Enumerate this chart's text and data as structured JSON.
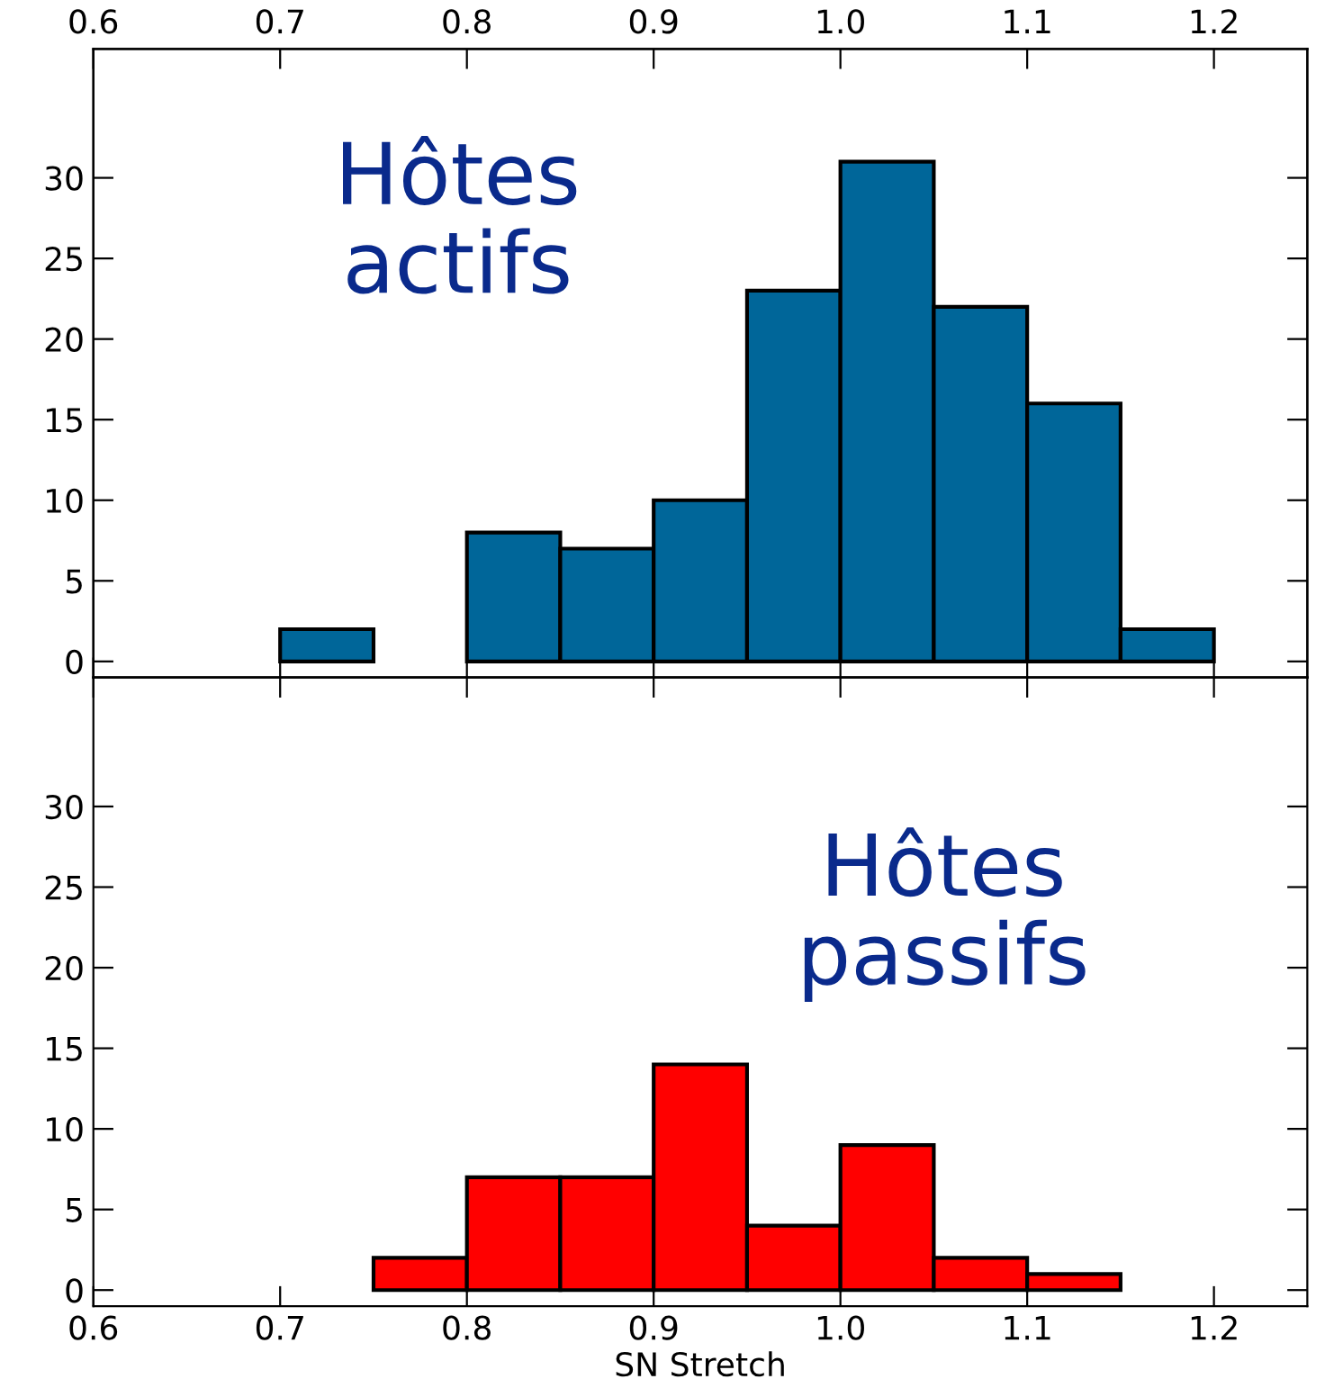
{
  "chart_data": [
    {
      "type": "histogram",
      "bins": [
        0.7,
        0.75,
        0.8,
        0.85,
        0.9,
        0.95,
        1.0,
        1.05,
        1.1,
        1.15,
        1.2
      ],
      "values": [
        2,
        null,
        8,
        7,
        10,
        23,
        31,
        22,
        16,
        2
      ],
      "color": "#006699",
      "annotations": [
        "Hôtes actifs"
      ],
      "xlim": [
        0.6,
        1.25
      ],
      "xticks": [
        {
          "value": 0.6,
          "label": null
        },
        {
          "value": 0.7,
          "label": null
        },
        {
          "value": 0.8,
          "label": null
        },
        {
          "value": 0.9,
          "label": null
        },
        {
          "value": 1,
          "label": null
        },
        {
          "value": 1.1,
          "label": null
        },
        {
          "value": 1.2,
          "label": null
        }
      ],
      "x2lim": [
        0.6,
        1.25
      ],
      "x2ticks": [
        0.6,
        0.7,
        0.8,
        0.9,
        {
          "value": 1,
          "label": "1.0"
        },
        1.1,
        1.2
      ],
      "ylim": [
        -1,
        38
      ],
      "yticks": [
        0,
        5,
        10,
        15,
        20,
        25,
        30
      ],
      "tick_labels": "y",
      "grid": false
    },
    {
      "type": "histogram",
      "bins": [
        0.75,
        0.8,
        0.85,
        0.9,
        0.95,
        1.0,
        1.05,
        1.1,
        1.15
      ],
      "values": [
        2,
        7,
        7,
        14,
        4,
        9,
        2,
        1
      ],
      "color": "#ff0000",
      "annotations": [
        "Hôtes passifs"
      ],
      "xlabel": "SN Stretch",
      "xlim": [
        0.6,
        1.25
      ],
      "xticks": [
        0.6,
        0.7,
        0.8,
        0.9,
        {
          "value": 1,
          "label": "1.0"
        },
        1.1,
        1.2
      ],
      "ylim": [
        -1,
        38
      ],
      "yticks": [
        0,
        5,
        10,
        15,
        20,
        25,
        30
      ],
      "grid": false
    }
  ]
}
